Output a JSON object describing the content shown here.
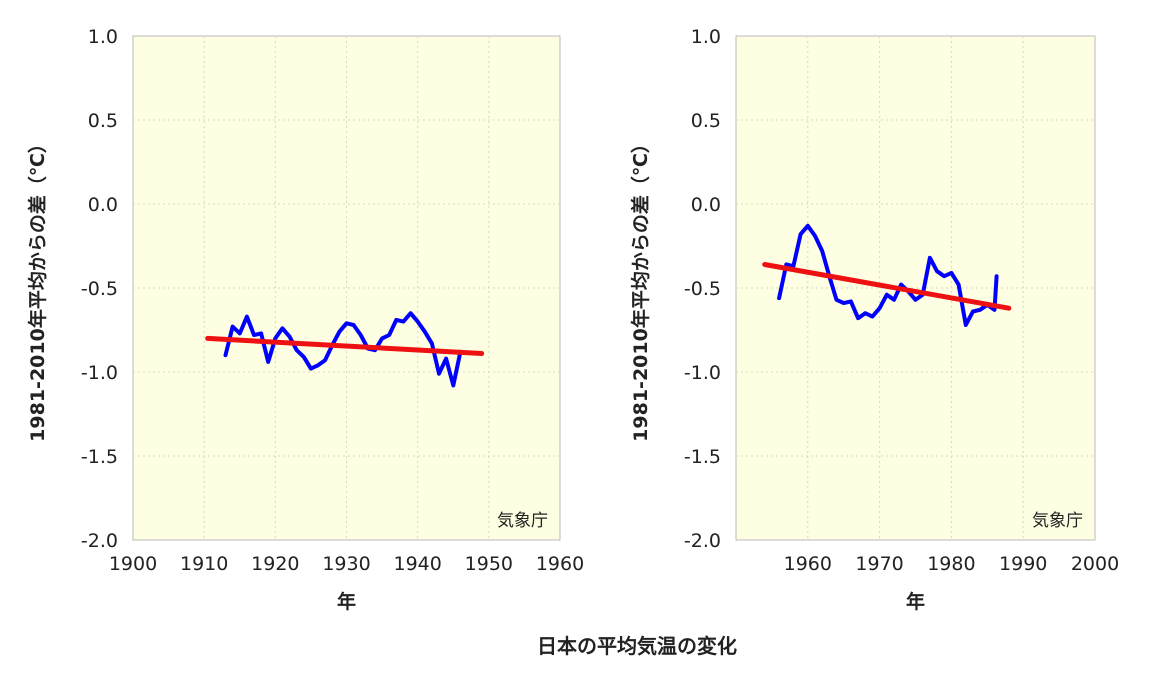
{
  "title": "日本の平均気温の変化",
  "chart_data": [
    {
      "type": "line",
      "xlabel": "年",
      "ylabel": "1981-2010年平均からの差（℃）",
      "credit": "気象庁",
      "xlim": [
        1900,
        1960
      ],
      "ylim": [
        -2.0,
        1.0
      ],
      "xticks": [
        "1900",
        "1910",
        "1920",
        "1930",
        "1940",
        "1950",
        "1960"
      ],
      "yticks": [
        "1.0",
        "0.5",
        "0.0",
        "-0.5",
        "-1.0",
        "-1.5",
        "-2.0"
      ],
      "grid": true,
      "background": "#fefee2",
      "series": [
        {
          "color": "#0000ff",
          "x": [
            1913,
            1914,
            1915,
            1916,
            1917,
            1918,
            1919,
            1920,
            1921,
            1922,
            1923,
            1924,
            1925,
            1926,
            1927,
            1928,
            1929,
            1930,
            1931,
            1932,
            1933,
            1934,
            1935,
            1936,
            1937,
            1938,
            1939,
            1940,
            1941,
            1942,
            1943,
            1944,
            1945,
            1946
          ],
          "y": [
            -0.9,
            -0.73,
            -0.77,
            -0.67,
            -0.78,
            -0.77,
            -0.94,
            -0.8,
            -0.74,
            -0.79,
            -0.87,
            -0.91,
            -0.98,
            -0.96,
            -0.93,
            -0.84,
            -0.76,
            -0.71,
            -0.72,
            -0.78,
            -0.86,
            -0.87,
            -0.8,
            -0.78,
            -0.69,
            -0.7,
            -0.65,
            -0.7,
            -0.76,
            -0.83,
            -1.01,
            -0.92,
            -1.08,
            -0.88
          ]
        },
        {
          "color": "#ee1111",
          "x": [
            1910.5,
            1949
          ],
          "y": [
            -0.8,
            -0.89
          ]
        }
      ]
    },
    {
      "type": "line",
      "xlabel": "年",
      "ylabel": "1981-2010年平均からの差（℃）",
      "credit": "気象庁",
      "xlim": [
        1950,
        2000
      ],
      "ylim": [
        -2.0,
        1.0
      ],
      "xticks": [
        "1960",
        "1970",
        "1980",
        "1990",
        "2000"
      ],
      "yticks": [
        "1.0",
        "0.5",
        "0.0",
        "-0.5",
        "-1.0",
        "-1.5",
        "-2.0"
      ],
      "grid": true,
      "background": "#fefee2",
      "series": [
        {
          "color": "#0000ff",
          "x": [
            1956,
            1957,
            1958,
            1959,
            1960,
            1961,
            1962,
            1963,
            1964,
            1965,
            1966,
            1967,
            1968,
            1969,
            1970,
            1971,
            1972,
            1973,
            1974,
            1975,
            1976,
            1977,
            1978,
            1979,
            1980,
            1981,
            1982,
            1983,
            1984,
            1985,
            1986,
            1986.3
          ],
          "y": [
            -0.56,
            -0.36,
            -0.37,
            -0.18,
            -0.13,
            -0.19,
            -0.28,
            -0.43,
            -0.57,
            -0.59,
            -0.58,
            -0.68,
            -0.65,
            -0.67,
            -0.62,
            -0.54,
            -0.57,
            -0.48,
            -0.52,
            -0.57,
            -0.54,
            -0.32,
            -0.4,
            -0.43,
            -0.41,
            -0.48,
            -0.72,
            -0.64,
            -0.63,
            -0.6,
            -0.63,
            -0.43
          ]
        },
        {
          "color": "#ee1111",
          "x": [
            1954,
            1988
          ],
          "y": [
            -0.36,
            -0.62
          ]
        }
      ]
    }
  ]
}
